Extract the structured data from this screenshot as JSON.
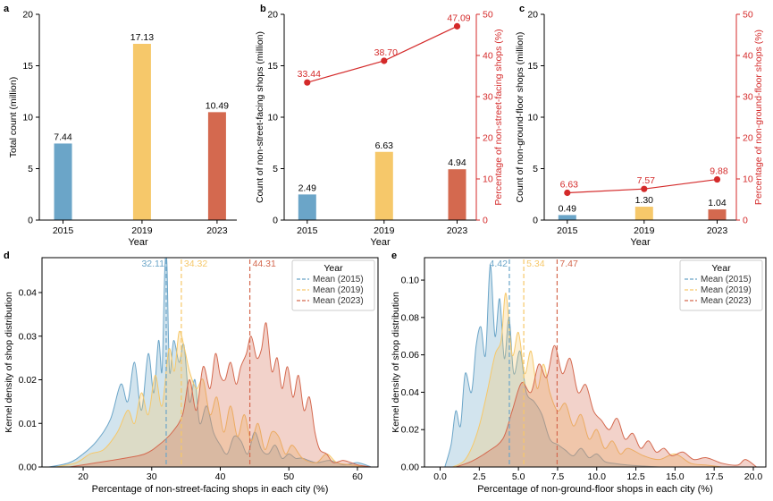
{
  "colors": {
    "c2015": "#6ba5c8",
    "c2019": "#f6c86a",
    "c2023": "#d4694f",
    "accent": "#d42a2a",
    "axis": "#000000"
  },
  "chart_data": [
    {
      "panel": "a",
      "type": "bar",
      "categories": [
        "2015",
        "2019",
        "2023"
      ],
      "values": [
        7.44,
        17.13,
        10.49
      ],
      "labels": [
        "7.44",
        "17.13",
        "10.49"
      ],
      "xlabel": "Year",
      "ylabel": "Total count (million)",
      "ylim": [
        0,
        20
      ],
      "yticks": [
        0,
        5,
        10,
        15,
        20
      ]
    },
    {
      "panel": "b",
      "type": "bar",
      "categories": [
        "2015",
        "2019",
        "2023"
      ],
      "values": [
        2.49,
        6.63,
        4.94
      ],
      "labels": [
        "2.49",
        "6.63",
        "4.94"
      ],
      "xlabel": "Year",
      "ylabel": "Count of non-street-facing shops (million)",
      "ylim": [
        0,
        20
      ],
      "yticks": [
        0,
        5,
        10,
        15,
        20
      ],
      "line": {
        "values": [
          33.44,
          38.7,
          47.09
        ],
        "labels": [
          "33.44",
          "38.70",
          "47.09"
        ],
        "ylabel": "Percentage of non-street-facing shops (%)",
        "ylim": [
          0,
          50
        ],
        "yticks": [
          0,
          10,
          20,
          30,
          40,
          50
        ]
      }
    },
    {
      "panel": "c",
      "type": "bar",
      "categories": [
        "2015",
        "2019",
        "2023"
      ],
      "values": [
        0.49,
        1.3,
        1.04
      ],
      "labels": [
        "0.49",
        "1.30",
        "1.04"
      ],
      "xlabel": "Year",
      "ylabel": "Count of non-ground-floor shops (million)",
      "ylim": [
        0,
        20
      ],
      "yticks": [
        0,
        5,
        10,
        15,
        20
      ],
      "line": {
        "values": [
          6.63,
          7.57,
          9.88
        ],
        "labels": [
          "6.63",
          "7.57",
          "9.88"
        ],
        "ylabel": "Percentage of non-ground-floor shops (%)",
        "ylim": [
          0,
          50
        ],
        "yticks": [
          0,
          10,
          20,
          30,
          40,
          50
        ]
      }
    },
    {
      "panel": "d",
      "type": "area",
      "xlabel": "Percentage of non-street-facing shops in each city (%)",
      "ylabel": "Kernel density of shop distribution",
      "xlim": [
        14,
        63
      ],
      "ylim": [
        0,
        0.048
      ],
      "xticks": [
        20,
        30,
        40,
        50,
        60
      ],
      "xtick_labels": [
        "20",
        "30",
        "40",
        "50",
        "60"
      ],
      "yticks": [
        0,
        0.01,
        0.02,
        0.03,
        0.04
      ],
      "ytick_labels": [
        "0.00",
        "0.01",
        "0.02",
        "0.03",
        "0.04"
      ],
      "legend_title": "Year",
      "legend_loc": "top-right",
      "series": [
        {
          "name": "Mean (2015)",
          "mean": 32.11,
          "mean_label": "32.11",
          "x": [
            15,
            18,
            20,
            22,
            24,
            25.5,
            26.5,
            27.5,
            28.5,
            29.5,
            30.3,
            31,
            31.5,
            31.9,
            32.2,
            32.6,
            33.2,
            34,
            34.7,
            35.5,
            36.3,
            37,
            38,
            39,
            40,
            41,
            42,
            43,
            44,
            45,
            46,
            47,
            48,
            49,
            50,
            51,
            52,
            54,
            56,
            58,
            60,
            62
          ],
          "y": [
            0,
            0.001,
            0.003,
            0.006,
            0.011,
            0.019,
            0.015,
            0.024,
            0.013,
            0.026,
            0.017,
            0.029,
            0.022,
            0.045,
            0.047,
            0.022,
            0.029,
            0.024,
            0.028,
            0.015,
            0.02,
            0.01,
            0.014,
            0.008,
            0.005,
            0.003,
            0.007,
            0.006,
            0.003,
            0.008,
            0.004,
            0.003,
            0.005,
            0.002,
            0.003,
            0.002,
            0.002,
            0.001,
            0.0015,
            0.0005,
            0.001,
            0
          ]
        },
        {
          "name": "Mean (2019)",
          "mean": 34.32,
          "mean_label": "34.32",
          "x": [
            16,
            19,
            21,
            23,
            25,
            26.5,
            27.5,
            28.5,
            29.5,
            30.5,
            31.5,
            32.5,
            33.3,
            34,
            34.8,
            35.5,
            36.5,
            37.5,
            38.5,
            39.5,
            40.5,
            41.5,
            42.5,
            43.5,
            44.5,
            45.5,
            46.5,
            47.5,
            48.5,
            49.5,
            50.5,
            52,
            54,
            55.5,
            57,
            59,
            61
          ],
          "y": [
            0,
            0.001,
            0.003,
            0.004,
            0.008,
            0.013,
            0.01,
            0.017,
            0.012,
            0.021,
            0.014,
            0.027,
            0.022,
            0.031,
            0.027,
            0.022,
            0.018,
            0.02,
            0.012,
            0.016,
            0.008,
            0.014,
            0.007,
            0.012,
            0.006,
            0.01,
            0.004,
            0.008,
            0.007,
            0.003,
            0.005,
            0.002,
            0.001,
            0.003,
            0.001,
            0.0005,
            0
          ]
        },
        {
          "name": "Mean (2023)",
          "mean": 44.31,
          "mean_label": "44.31",
          "x": [
            18,
            22,
            26,
            29,
            31,
            33,
            34.5,
            35.5,
            36.5,
            37.5,
            38.5,
            39.3,
            40,
            40.7,
            41.5,
            42.3,
            43,
            43.8,
            44.5,
            45.3,
            46,
            46.7,
            47.5,
            48.3,
            49,
            49.8,
            50.6,
            51.4,
            52.2,
            53,
            53.8,
            54.5,
            55.5,
            56.5,
            58,
            60,
            62
          ],
          "y": [
            0,
            0.001,
            0.002,
            0.003,
            0.005,
            0.008,
            0.012,
            0.02,
            0.013,
            0.023,
            0.018,
            0.026,
            0.021,
            0.02,
            0.024,
            0.019,
            0.023,
            0.026,
            0.03,
            0.025,
            0.027,
            0.033,
            0.022,
            0.025,
            0.018,
            0.023,
            0.016,
            0.021,
            0.013,
            0.016,
            0.008,
            0.004,
            0.003,
            0.001,
            0.0015,
            0.0005,
            0
          ]
        }
      ]
    },
    {
      "panel": "e",
      "type": "area",
      "xlabel": "Percentage of non-ground-floor shops in each city (%)",
      "ylabel": "Kernel density of shop distribution",
      "xlim": [
        -1,
        20.8
      ],
      "ylim": [
        0,
        0.112
      ],
      "xticks": [
        0,
        2.5,
        5,
        7.5,
        10,
        12.5,
        15,
        17.5,
        20
      ],
      "xtick_labels": [
        "0.0",
        "2.5",
        "5.0",
        "7.5",
        "10.0",
        "12.5",
        "15.0",
        "17.5",
        "20.0"
      ],
      "yticks": [
        0,
        0.02,
        0.04,
        0.06,
        0.08,
        0.1
      ],
      "ytick_labels": [
        "0.00",
        "0.02",
        "0.04",
        "0.06",
        "0.08",
        "0.10"
      ],
      "legend_title": "Year",
      "legend_loc": "top-right",
      "series": [
        {
          "name": "Mean (2015)",
          "mean": 4.42,
          "mean_label": "4.42",
          "x": [
            0.3,
            0.7,
            1,
            1.3,
            1.6,
            2,
            2.3,
            2.6,
            2.9,
            3.2,
            3.5,
            3.8,
            4.1,
            4.4,
            4.7,
            5.1,
            5.5,
            6,
            6.5,
            7,
            7.5,
            8,
            8.5,
            9,
            9.5,
            10,
            10.5,
            11,
            12,
            13,
            14
          ],
          "y": [
            0,
            0.012,
            0.03,
            0.022,
            0.05,
            0.04,
            0.065,
            0.075,
            0.06,
            0.108,
            0.07,
            0.09,
            0.058,
            0.08,
            0.05,
            0.062,
            0.04,
            0.035,
            0.028,
            0.015,
            0.012,
            0.009,
            0.006,
            0.01,
            0.005,
            0.007,
            0.003,
            0.002,
            0.001,
            0.0005,
            0
          ]
        },
        {
          "name": "Mean (2019)",
          "mean": 5.34,
          "mean_label": "5.34",
          "x": [
            0.8,
            1.5,
            2,
            2.5,
            3,
            3.5,
            3.9,
            4.2,
            4.6,
            5,
            5.4,
            5.8,
            6.2,
            6.6,
            7,
            7.5,
            8,
            8.5,
            9,
            9.5,
            10,
            10.5,
            11,
            11.5,
            12,
            13,
            14,
            15,
            16,
            17,
            18
          ],
          "y": [
            0,
            0.003,
            0.01,
            0.022,
            0.04,
            0.06,
            0.068,
            0.093,
            0.06,
            0.072,
            0.05,
            0.062,
            0.042,
            0.055,
            0.04,
            0.03,
            0.034,
            0.022,
            0.028,
            0.015,
            0.02,
            0.01,
            0.014,
            0.007,
            0.01,
            0.006,
            0.004,
            0.007,
            0.002,
            0.001,
            0
          ]
        },
        {
          "name": "Mean (2023)",
          "mean": 7.47,
          "mean_label": "7.47",
          "x": [
            1,
            2,
            3,
            4,
            4.6,
            5.2,
            5.8,
            6.3,
            6.8,
            7.3,
            7.8,
            8.3,
            8.8,
            9.3,
            9.8,
            10.3,
            10.8,
            11.3,
            11.8,
            12.3,
            12.8,
            13.3,
            13.8,
            14.3,
            14.8,
            15.5,
            16.2,
            17,
            18,
            19,
            19.5,
            20.2
          ],
          "y": [
            0,
            0.003,
            0.008,
            0.015,
            0.03,
            0.045,
            0.04,
            0.055,
            0.048,
            0.065,
            0.05,
            0.058,
            0.04,
            0.044,
            0.03,
            0.025,
            0.02,
            0.026,
            0.015,
            0.018,
            0.01,
            0.014,
            0.008,
            0.01,
            0.006,
            0.008,
            0.004,
            0.005,
            0.002,
            0.001,
            0.004,
            0
          ]
        }
      ]
    }
  ]
}
